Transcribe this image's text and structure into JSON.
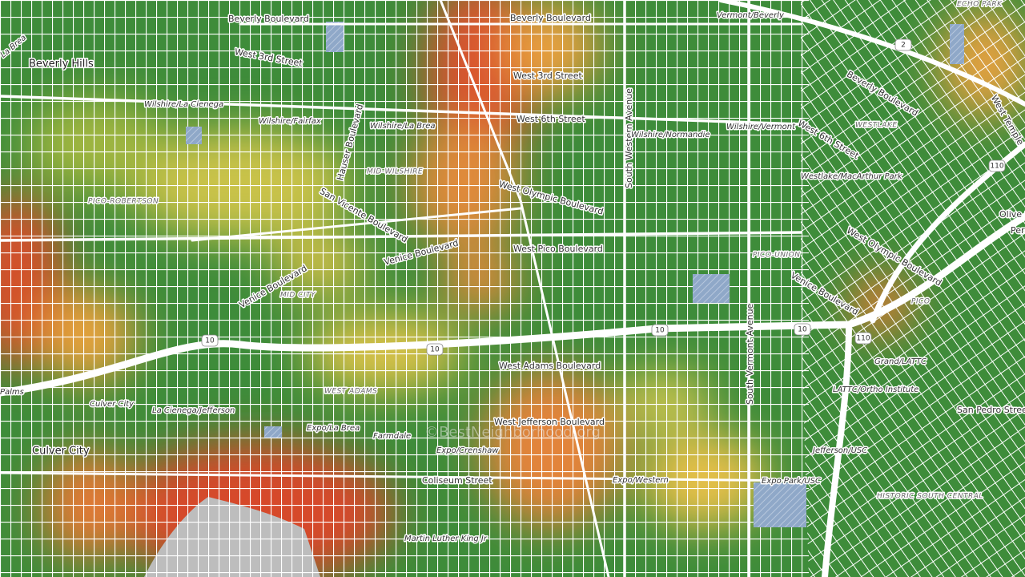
{
  "map": {
    "streets": [
      "Beverly Boulevard",
      "Beverly Boulevard",
      "West 3rd Street",
      "West 3rd Street",
      "West 6th Street",
      "Hauser Boulevard",
      "San Vicente Boulevard",
      "West Olympic Boulevard",
      "West Pico Boulevard",
      "Venice Boulevard",
      "Venice Boulevard",
      "South Western Avenue",
      "West Adams Boulevard",
      "West Jefferson Boulevard",
      "Coliseum Street",
      "South Vermont Avenue",
      "Beverly Boulevard",
      "West 6th Street",
      "West Olympic Boulevard",
      "Venice Boulevard",
      "West Temple",
      "San Pedro Street",
      "Olive S",
      "Pershing"
    ],
    "stations": [
      "Vermont/Beverly",
      "Wilshire/La Cienega",
      "Wilshire/Fairfax",
      "Wilshire/La Brea",
      "Wilshire/Normandie",
      "Wilshire/Vermont",
      "Westlake/MacArthur Park",
      "Grand/LATTC",
      "LATTC/Ortho Institute",
      "Jefferson/USC",
      "Expo Park/USC",
      "Expo/Western",
      "Expo/Crenshaw",
      "Expo/La Brea",
      "Farmdale",
      "La Cienega/Jefferson",
      "Culver City",
      "Martin Luther King Jr",
      "Palms",
      "La Brea"
    ],
    "neighborhoods": [
      "ECHO PARK",
      "PICO-ROBERTSON",
      "MID-WILSHIRE",
      "WESTLAKE",
      "MID CITY",
      "PICO-UNION",
      "PICO",
      "WEST ADAMS",
      "HISTORIC SOUTH CENTRAL"
    ],
    "places": [
      "Beverly Hills",
      "Culver City"
    ],
    "shields": [
      "2",
      "110",
      "10",
      "10",
      "10",
      "10",
      "110"
    ],
    "watermark": "©BestNeighborhood.org"
  }
}
